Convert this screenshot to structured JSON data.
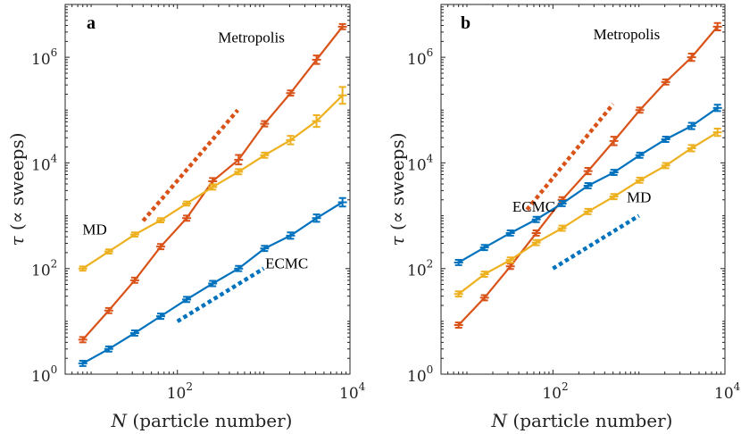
{
  "chart_data": [
    {
      "type": "line",
      "panel": "a",
      "xscale": "log",
      "yscale": "log",
      "xlim": [
        5,
        10000
      ],
      "ylim": [
        1,
        10000000
      ],
      "xlabel_var": "N",
      "xlabel_rest": " (particle number)",
      "ylabel_var": "τ",
      "ylabel_rest": " (∝ sweeps)",
      "x_ticks": [
        {
          "base": "10",
          "exp": "2",
          "value": 100
        },
        {
          "base": "10",
          "exp": "4",
          "value": 10000
        }
      ],
      "y_ticks": [
        {
          "base": "10",
          "exp": "0",
          "value": 1
        },
        {
          "base": "10",
          "exp": "2",
          "value": 100
        },
        {
          "base": "10",
          "exp": "4",
          "value": 10000
        },
        {
          "base": "10",
          "exp": "6",
          "value": 1000000
        }
      ],
      "series": [
        {
          "name": "Metropolis",
          "color": "#d95319",
          "x": [
            8,
            16,
            32,
            64,
            128,
            256,
            512,
            1024,
            2048,
            4096,
            8192
          ],
          "y": [
            4.5,
            16,
            60,
            260,
            900,
            4500,
            11500,
            55000,
            210000,
            900000,
            3800000
          ],
          "err": [
            0.05,
            0.05,
            0.05,
            0.05,
            0.05,
            0.06,
            0.09,
            0.05,
            0.05,
            0.08,
            0.05
          ]
        },
        {
          "name": "MD",
          "color": "#edb120",
          "x": [
            8,
            16,
            32,
            64,
            128,
            256,
            512,
            1024,
            2048,
            4096,
            8192
          ],
          "y": [
            100,
            210,
            440,
            820,
            1700,
            3500,
            6800,
            14000,
            27000,
            62000,
            190000
          ],
          "err": [
            0.04,
            0.04,
            0.04,
            0.04,
            0.04,
            0.05,
            0.05,
            0.05,
            0.08,
            0.11,
            0.16
          ]
        },
        {
          "name": "ECMC",
          "color": "#0072bd",
          "x": [
            8,
            16,
            32,
            64,
            128,
            256,
            512,
            1024,
            2048,
            4096,
            8192
          ],
          "y": [
            1.6,
            3,
            6,
            12.5,
            26,
            52,
            100,
            240,
            420,
            900,
            1800
          ],
          "err": [
            0.05,
            0.05,
            0.05,
            0.05,
            0.05,
            0.05,
            0.05,
            0.05,
            0.06,
            0.07,
            0.08
          ]
        }
      ],
      "guides": [
        {
          "color": "#d95319",
          "x": [
            40,
            500
          ],
          "y": [
            800,
            100000
          ]
        },
        {
          "color": "#0072bd",
          "x": [
            100,
            1000
          ],
          "y": [
            10,
            100
          ]
        }
      ],
      "labels": [
        {
          "text": "Metropolis",
          "x": 720,
          "y": 1900000
        },
        {
          "text": "MD",
          "x": 11,
          "y": 440
        },
        {
          "text": "ECMC",
          "x": 1850,
          "y": 100
        }
      ]
    },
    {
      "type": "line",
      "panel": "b",
      "xscale": "log",
      "yscale": "log",
      "xlim": [
        5,
        10000
      ],
      "ylim": [
        1,
        10000000
      ],
      "xlabel_var": "N",
      "xlabel_rest": " (particle number)",
      "ylabel_var": "τ",
      "ylabel_rest": " (∝ sweeps)",
      "x_ticks": [
        {
          "base": "10",
          "exp": "2",
          "value": 100
        },
        {
          "base": "10",
          "exp": "4",
          "value": 10000
        }
      ],
      "y_ticks": [
        {
          "base": "10",
          "exp": "0",
          "value": 1
        },
        {
          "base": "10",
          "exp": "2",
          "value": 100
        },
        {
          "base": "10",
          "exp": "4",
          "value": 10000
        },
        {
          "base": "10",
          "exp": "6",
          "value": 1000000
        }
      ],
      "series": [
        {
          "name": "Metropolis",
          "color": "#d95319",
          "x": [
            8,
            16,
            32,
            64,
            128,
            256,
            512,
            1024,
            2048,
            4096,
            8192
          ],
          "y": [
            8.5,
            28,
            110,
            470,
            2000,
            7000,
            26000,
            100000,
            340000,
            1000000,
            3800000
          ],
          "err": [
            0.05,
            0.05,
            0.05,
            0.05,
            0.05,
            0.06,
            0.08,
            0.05,
            0.05,
            0.07,
            0.07
          ]
        },
        {
          "name": "ECMC",
          "color": "#0072bd",
          "x": [
            8,
            16,
            32,
            64,
            128,
            256,
            512,
            1024,
            2048,
            4096,
            8192
          ],
          "y": [
            130,
            250,
            470,
            850,
            1700,
            3700,
            6600,
            14000,
            28000,
            50000,
            110000
          ],
          "err": [
            0.05,
            0.05,
            0.05,
            0.05,
            0.05,
            0.05,
            0.05,
            0.05,
            0.05,
            0.06,
            0.06
          ]
        },
        {
          "name": "MD",
          "color": "#edb120",
          "x": [
            8,
            16,
            32,
            64,
            128,
            256,
            512,
            1024,
            2048,
            4096,
            8192
          ],
          "y": [
            33,
            78,
            145,
            310,
            580,
            1200,
            2300,
            4700,
            8900,
            19000,
            38000
          ],
          "err": [
            0.05,
            0.05,
            0.05,
            0.05,
            0.05,
            0.05,
            0.05,
            0.05,
            0.05,
            0.06,
            0.07
          ]
        }
      ],
      "guides": [
        {
          "color": "#d95319",
          "x": [
            50,
            500
          ],
          "y": [
            1300,
            130000
          ]
        },
        {
          "color": "#0072bd",
          "x": [
            100,
            1000
          ],
          "y": [
            100,
            1000
          ]
        }
      ],
      "labels": [
        {
          "text": "Metropolis",
          "x": 720,
          "y": 2200000
        },
        {
          "text": "ECMC",
          "x": 60,
          "y": 1200
        },
        {
          "text": "MD",
          "x": 1000,
          "y": 1800
        }
      ]
    }
  ]
}
